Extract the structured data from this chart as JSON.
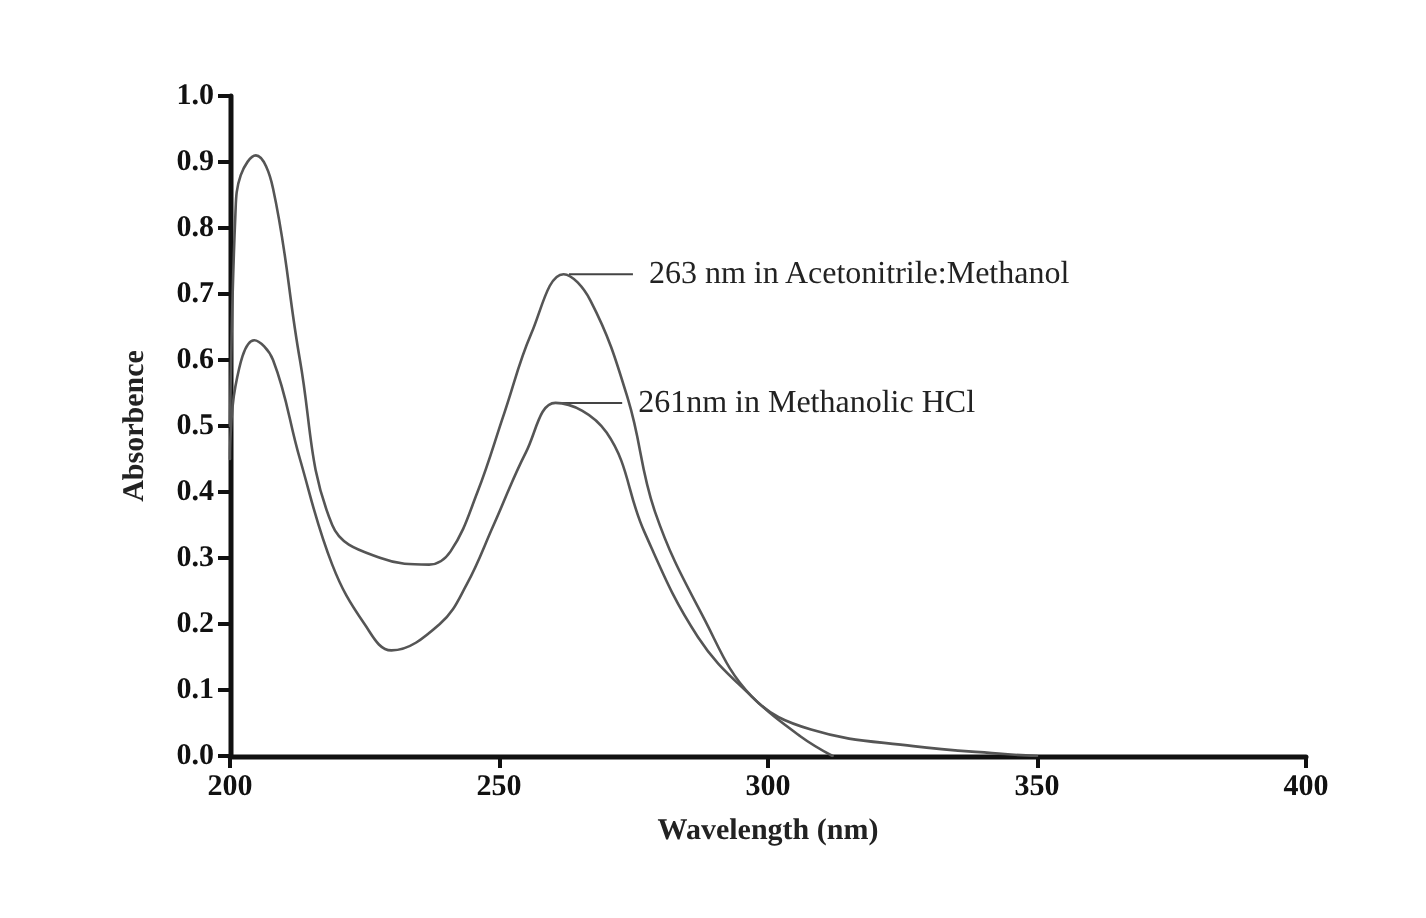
{
  "chart_data": {
    "type": "line",
    "xlabel": "Wavelength (nm)",
    "ylabel": "Absorbence",
    "xlim": [
      200,
      400
    ],
    "xticks": [
      200,
      250,
      300,
      350,
      400
    ],
    "ylim": [
      0,
      1
    ],
    "yticks": [
      {
        "value": 0,
        "label": "0.0"
      },
      0.1,
      0.2,
      0.3,
      0.4,
      0.5,
      0.6,
      0.7,
      0.8,
      0.9,
      {
        "value": 1,
        "label": "1.0"
      }
    ],
    "grid": false,
    "marker": "none",
    "line_style": "solid",
    "series": [
      {
        "color": "#555555",
        "x": [
          200,
          201,
          202,
          204.8,
          208,
          213,
          219,
          228,
          237,
          241,
          246,
          251,
          256,
          262,
          267,
          274,
          279,
          288,
          297,
          308,
          327,
          344,
          350
        ],
        "values": [
          0.5,
          0.82,
          0.88,
          0.91,
          0.86,
          0.6,
          0.35,
          0.3,
          0.29,
          0.31,
          0.4,
          0.52,
          0.64,
          0.73,
          0.69,
          0.54,
          0.37,
          0.21,
          0.09,
          0.04,
          0.015,
          0.003,
          0
        ]
      },
      {
        "color": "#555555",
        "x": [
          200,
          201,
          204.5,
          208,
          213,
          219,
          225,
          230,
          239,
          244,
          249,
          255,
          260.5,
          270,
          277,
          287,
          297,
          306,
          312
        ],
        "values": [
          0.45,
          0.56,
          0.63,
          0.6,
          0.45,
          0.29,
          0.2,
          0.16,
          0.2,
          0.26,
          0.35,
          0.46,
          0.535,
          0.49,
          0.34,
          0.18,
          0.09,
          0.03,
          0
        ]
      }
    ],
    "annotations": [
      {
        "text": "263 nm in Acetonitrile:Methanol",
        "x": 263,
        "y": 0.73
      },
      {
        "text": "261nm in Methanolic HCl",
        "x": 261,
        "y": 0.535
      }
    ]
  }
}
